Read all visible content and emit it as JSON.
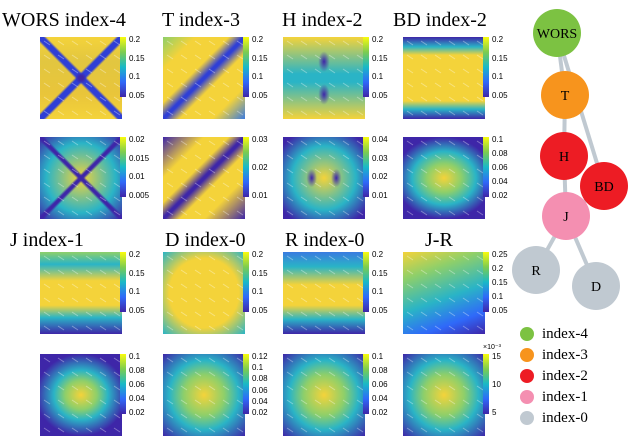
{
  "titles": [
    "WORS index-4",
    "T index-3",
    "H index-2",
    "BD index-2",
    "J index-1",
    "D index-0",
    "R index-0",
    "J-R"
  ],
  "colorbars": {
    "c0": [
      "0.2",
      "0.15",
      "0.1",
      "0.05"
    ],
    "c1": [
      "0.2",
      "0.15",
      "0.1",
      "0.05"
    ],
    "c2": [
      "0.2",
      "0.15",
      "0.1",
      "0.05"
    ],
    "c3": [
      "0.2",
      "0.15",
      "0.1",
      "0.05"
    ],
    "c4": [
      "0.02",
      "0.015",
      "0.01",
      "0.005"
    ],
    "c5": [
      "0.03",
      "0.02",
      "0.01"
    ],
    "c6": [
      "0.04",
      "0.03",
      "0.02",
      "0.01"
    ],
    "c7": [
      "0.1",
      "0.08",
      "0.06",
      "0.04",
      "0.02"
    ],
    "c8": [
      "0.2",
      "0.15",
      "0.1",
      "0.05"
    ],
    "c9": [
      "0.2",
      "0.15",
      "0.1",
      "0.05"
    ],
    "c10": [
      "0.2",
      "0.15",
      "0.1",
      "0.05"
    ],
    "c11": [
      "0.25",
      "0.2",
      "0.15",
      "0.1",
      "0.05"
    ],
    "c12": [
      "0.1",
      "0.08",
      "0.06",
      "0.04",
      "0.02"
    ],
    "c13": [
      "0.12",
      "0.1",
      "0.08",
      "0.06",
      "0.04",
      "0.02"
    ],
    "c14": [
      "0.1",
      "0.08",
      "0.06",
      "0.04",
      "0.02"
    ],
    "c15": [
      "15",
      "10",
      "5"
    ]
  },
  "colorbar_exponent": "×10⁻³",
  "graph_nodes": [
    "WORS",
    "T",
    "H",
    "BD",
    "J",
    "R",
    "D"
  ],
  "node_colors": {
    "index-4": "#7cc242",
    "index-3": "#f7941d",
    "index-2": "#ed1c24",
    "index-1": "#f48fb1",
    "index-0": "#c0c9d1"
  },
  "legend": [
    "index-4",
    "index-3",
    "index-2",
    "index-1",
    "index-0"
  ]
}
